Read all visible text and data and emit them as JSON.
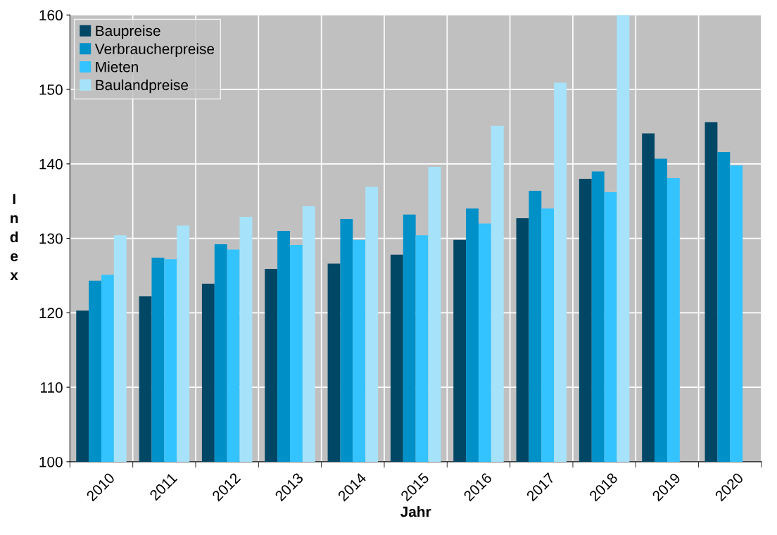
{
  "chart_data": {
    "type": "bar",
    "xlabel": "Jahr",
    "ylabel": "Index",
    "categories": [
      "2010",
      "2011",
      "2012",
      "2013",
      "2014",
      "2015",
      "2016",
      "2017",
      "2018",
      "2019",
      "2020"
    ],
    "series": [
      {
        "name": "Baupreise",
        "color": "#004766",
        "values": [
          120.3,
          122.2,
          123.9,
          125.9,
          126.6,
          127.8,
          129.8,
          132.7,
          138.0,
          144.1,
          145.6
        ]
      },
      {
        "name": "Verbraucherpreise",
        "color": "#0090c8",
        "values": [
          124.3,
          127.4,
          129.2,
          131.0,
          132.6,
          133.2,
          134.0,
          136.4,
          139.0,
          140.7,
          141.6
        ]
      },
      {
        "name": "Mieten",
        "color": "#33c3ff",
        "values": [
          125.1,
          127.2,
          128.5,
          129.1,
          129.8,
          130.4,
          132.0,
          134.0,
          136.2,
          138.1,
          139.8
        ]
      },
      {
        "name": "Baulandpreise",
        "color": "#a6e3fa",
        "values": [
          130.4,
          131.7,
          132.9,
          134.3,
          136.9,
          139.6,
          145.1,
          150.9,
          160,
          null,
          null
        ]
      }
    ],
    "ylim": [
      100,
      160
    ],
    "yticks": [
      100,
      110,
      120,
      130,
      140,
      150,
      160
    ],
    "grid": true,
    "legend": "top left"
  }
}
